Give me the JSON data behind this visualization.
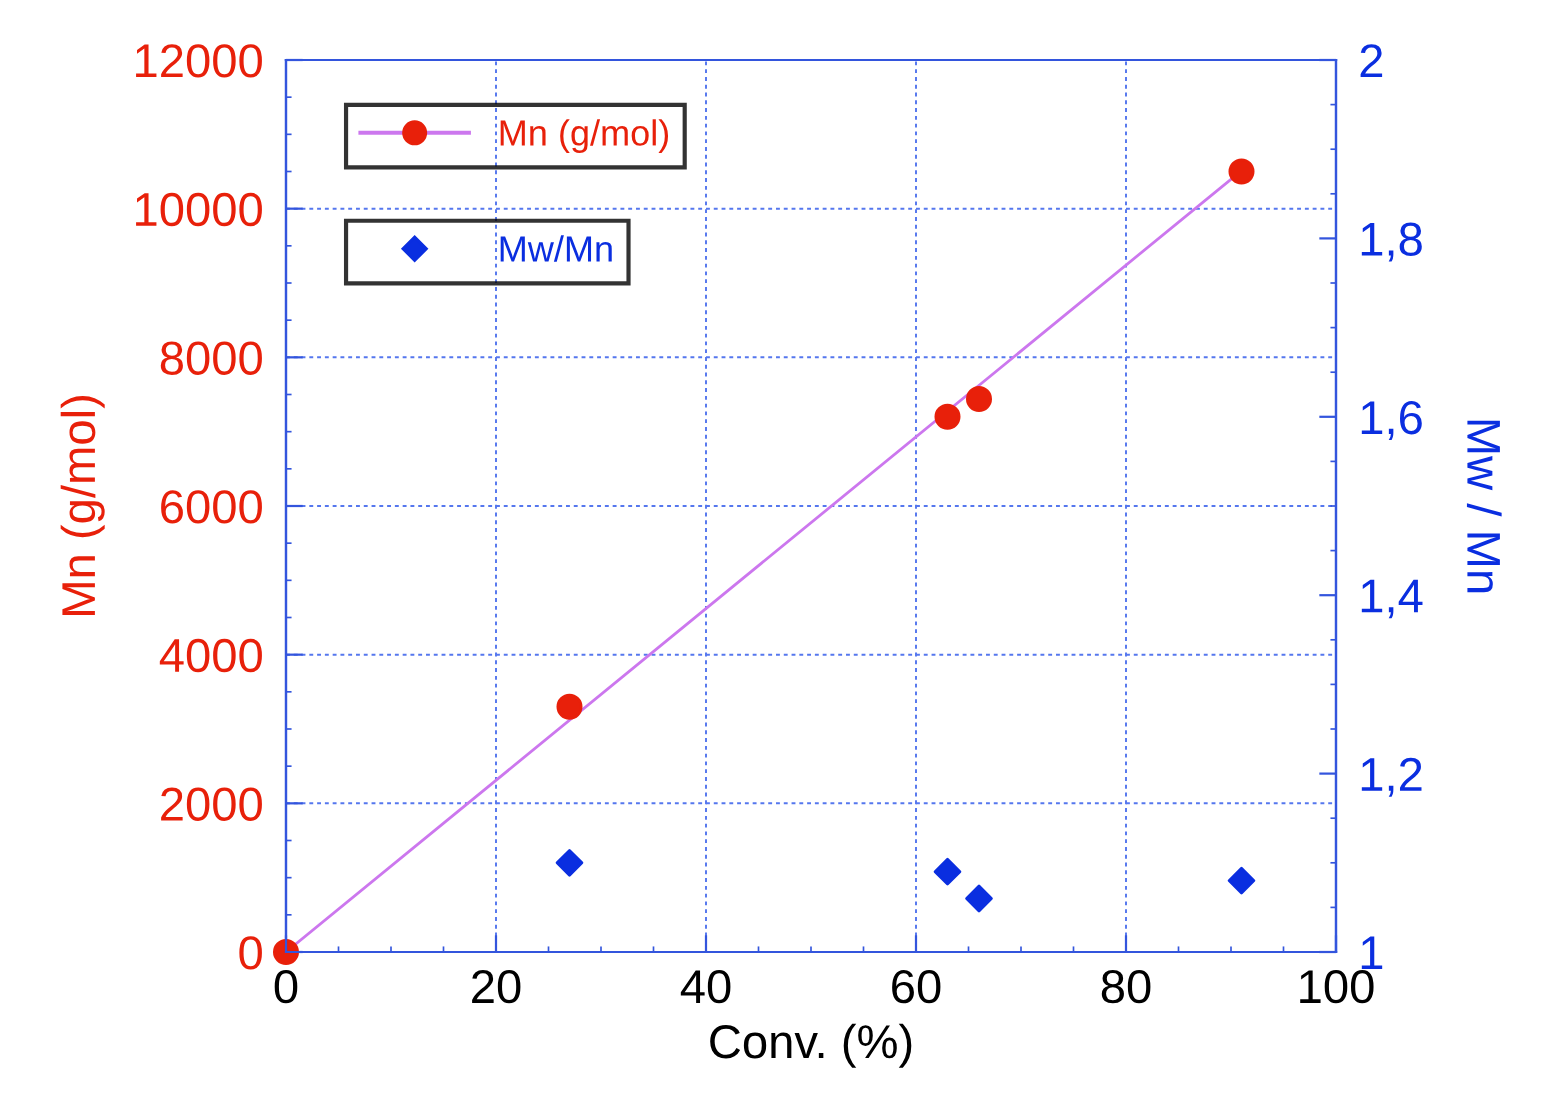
{
  "chart_data": {
    "type": "scatter",
    "xlabel": "Conv. (%)",
    "ylabel": "Mn (g/mol)",
    "y2label": "Mw / Mn",
    "xlim": [
      0,
      100
    ],
    "xticks": [
      0,
      20,
      40,
      60,
      80,
      100
    ],
    "ylim": [
      0,
      12000
    ],
    "yticks": [
      0,
      2000,
      4000,
      6000,
      8000,
      10000,
      12000
    ],
    "y2lim": [
      1,
      2
    ],
    "y2ticks": [
      {
        "value": 1,
        "label": "1"
      },
      {
        "value": 1.2,
        "label": "1,2"
      },
      {
        "value": 1.4,
        "label": "1,4"
      },
      {
        "value": 1.6,
        "label": "1,6"
      },
      {
        "value": 1.8,
        "label": "1,8"
      },
      {
        "value": 2,
        "label": "2"
      }
    ],
    "grid": true,
    "legend": "top left",
    "series": [
      {
        "name": "Mn (g/mol)",
        "marker": "circle",
        "color": "#e8200a",
        "x": [
          0,
          27,
          63,
          66,
          91
        ],
        "values": [
          0,
          3300,
          7200,
          7440,
          10500
        ]
      },
      {
        "type": "line",
        "marker": "none",
        "color": "#cc77ee",
        "x": [
          0,
          90.3
        ],
        "values": [
          0,
          10430
        ]
      },
      {
        "name": "Mw/Mn",
        "marker": "diamond",
        "axis": "y2",
        "color": "#0a2ee0",
        "x": [
          27,
          63,
          66,
          91
        ],
        "values": [
          1.1,
          1.09,
          1.06,
          1.08
        ]
      }
    ]
  }
}
